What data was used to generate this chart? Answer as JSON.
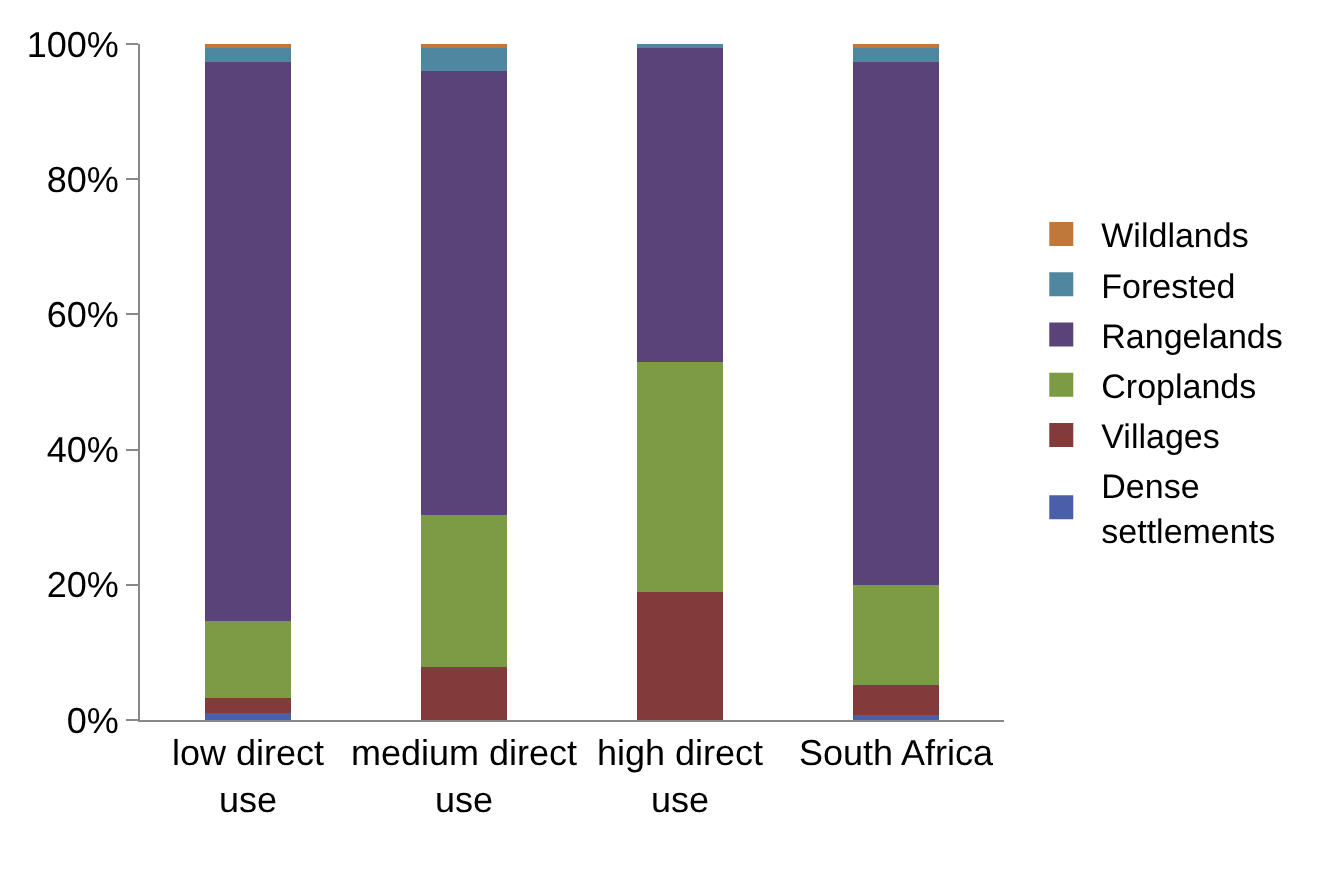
{
  "chart_data": {
    "type": "bar",
    "stacked": true,
    "categories": [
      "low direct use",
      "medium direct use",
      "high direct use",
      "South Africa"
    ],
    "series": [
      {
        "name": "Dense settlements",
        "color": "#4a5fa8",
        "values": [
          1,
          0,
          0,
          0.8
        ]
      },
      {
        "name": "Villages",
        "color": "#823a3a",
        "values": [
          2.3,
          7.8,
          19,
          4.4
        ]
      },
      {
        "name": "Croplands",
        "color": "#7d9a45",
        "values": [
          11.4,
          22.5,
          34,
          14.7
        ]
      },
      {
        "name": "Rangelands",
        "color": "#5a4378",
        "values": [
          82.7,
          65.7,
          46.4,
          77.5
        ]
      },
      {
        "name": "Forested",
        "color": "#4f86a0",
        "values": [
          2,
          3.7,
          0.6,
          2
        ]
      },
      {
        "name": "Wildlands",
        "color": "#c0783a",
        "values": [
          0.6,
          0.3,
          0,
          0.6
        ]
      }
    ],
    "ylim": [
      0,
      100
    ],
    "yticks": [
      {
        "value": 0,
        "label": "0%"
      },
      {
        "value": 20,
        "label": "20%"
      },
      {
        "value": 40,
        "label": "40%"
      },
      {
        "value": 60,
        "label": "60%"
      },
      {
        "value": 80,
        "label": "80%"
      },
      {
        "value": 100,
        "label": "100%"
      }
    ],
    "grid": false,
    "legend": "right"
  }
}
